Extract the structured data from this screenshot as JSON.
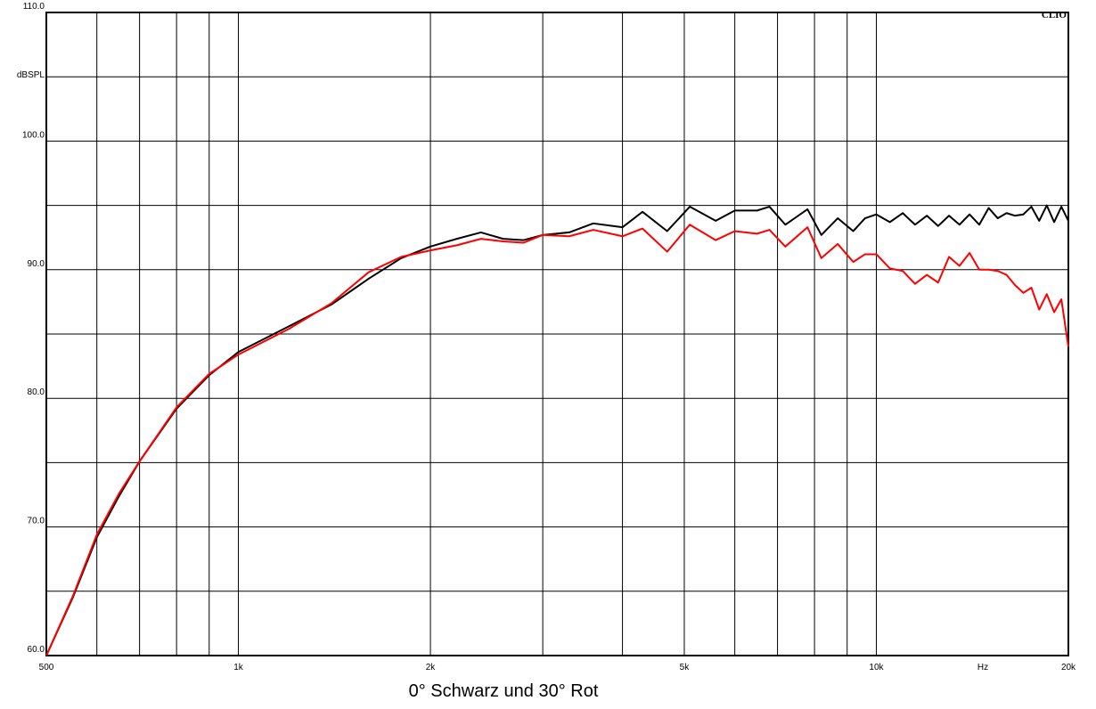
{
  "chart_data": {
    "type": "line",
    "brand": "CLIO",
    "caption": "0° Schwarz und 30° Rot",
    "ylabel": "dBSPL",
    "xlabel": "Hz",
    "log_x": true,
    "xlim": [
      500,
      20000
    ],
    "ylim": [
      60,
      110
    ],
    "xticks": [
      500,
      {
        "value": 1000,
        "label": "1k"
      },
      {
        "value": 2000,
        "label": "2k"
      },
      {
        "value": 5000,
        "label": "5k"
      },
      {
        "value": 10000,
        "label": "10k"
      },
      {
        "value": 20000,
        "label": "20k"
      }
    ],
    "xminor": [
      600,
      700,
      800,
      900,
      3000,
      4000,
      6000,
      7000,
      8000,
      9000
    ],
    "yticks": [
      {
        "value": 60,
        "label": "60.0"
      },
      {
        "value": 70,
        "label": "70.0"
      },
      {
        "value": 80,
        "label": "80.0"
      },
      {
        "value": 90,
        "label": "90.0"
      },
      {
        "value": 100,
        "label": "100.0"
      },
      {
        "value": 110,
        "label": "110.0"
      }
    ],
    "yminor": [
      65,
      75,
      85,
      95,
      105
    ],
    "grid": true,
    "x": [
      500,
      550,
      600,
      650,
      700,
      800,
      900,
      1000,
      1200,
      1400,
      1600,
      1800,
      2000,
      2200,
      2400,
      2600,
      2800,
      3000,
      3300,
      3600,
      4000,
      4300,
      4700,
      5100,
      5600,
      6000,
      6500,
      6800,
      7200,
      7800,
      8200,
      8700,
      9200,
      9600,
      10000,
      10500,
      11000,
      11500,
      12000,
      12500,
      13000,
      13500,
      14000,
      14500,
      15000,
      15500,
      16000,
      16500,
      17000,
      17500,
      18000,
      18500,
      19000,
      19500,
      20000
    ],
    "series": [
      {
        "color": "#000000",
        "values": [
          60,
          64.5,
          69.2,
          72.4,
          75.1,
          79.2,
          81.8,
          83.6,
          85.6,
          87.3,
          89.3,
          90.9,
          91.8,
          92.4,
          92.9,
          92.4,
          92.3,
          92.7,
          92.9,
          93.6,
          93.3,
          94.5,
          93.0,
          94.9,
          93.8,
          94.6,
          94.6,
          94.9,
          93.5,
          94.7,
          92.7,
          94.0,
          93.0,
          94.0,
          94.3,
          93.7,
          94.4,
          93.5,
          94.2,
          93.4,
          94.2,
          93.5,
          94.3,
          93.5,
          94.8,
          94.0,
          94.4,
          94.2,
          94.3,
          94.9,
          93.8,
          95.0,
          93.7,
          94.9,
          93.8
        ]
      },
      {
        "color": "#ff0000",
        "values": [
          60,
          64.6,
          69.4,
          72.6,
          75.1,
          79.3,
          81.9,
          83.4,
          85.4,
          87.4,
          89.8,
          91.0,
          91.5,
          91.9,
          92.4,
          92.2,
          92.1,
          92.7,
          92.6,
          93.1,
          92.6,
          93.2,
          91.4,
          93.5,
          92.3,
          93.0,
          92.8,
          93.1,
          91.8,
          93.3,
          90.9,
          92.0,
          90.6,
          91.2,
          91.2,
          90.1,
          89.9,
          88.9,
          89.6,
          89.0,
          91.0,
          90.3,
          91.3,
          90.0,
          90.0,
          89.9,
          89.6,
          88.8,
          88.2,
          88.6,
          86.9,
          88.1,
          86.7,
          87.7,
          84.0
        ]
      }
    ]
  }
}
